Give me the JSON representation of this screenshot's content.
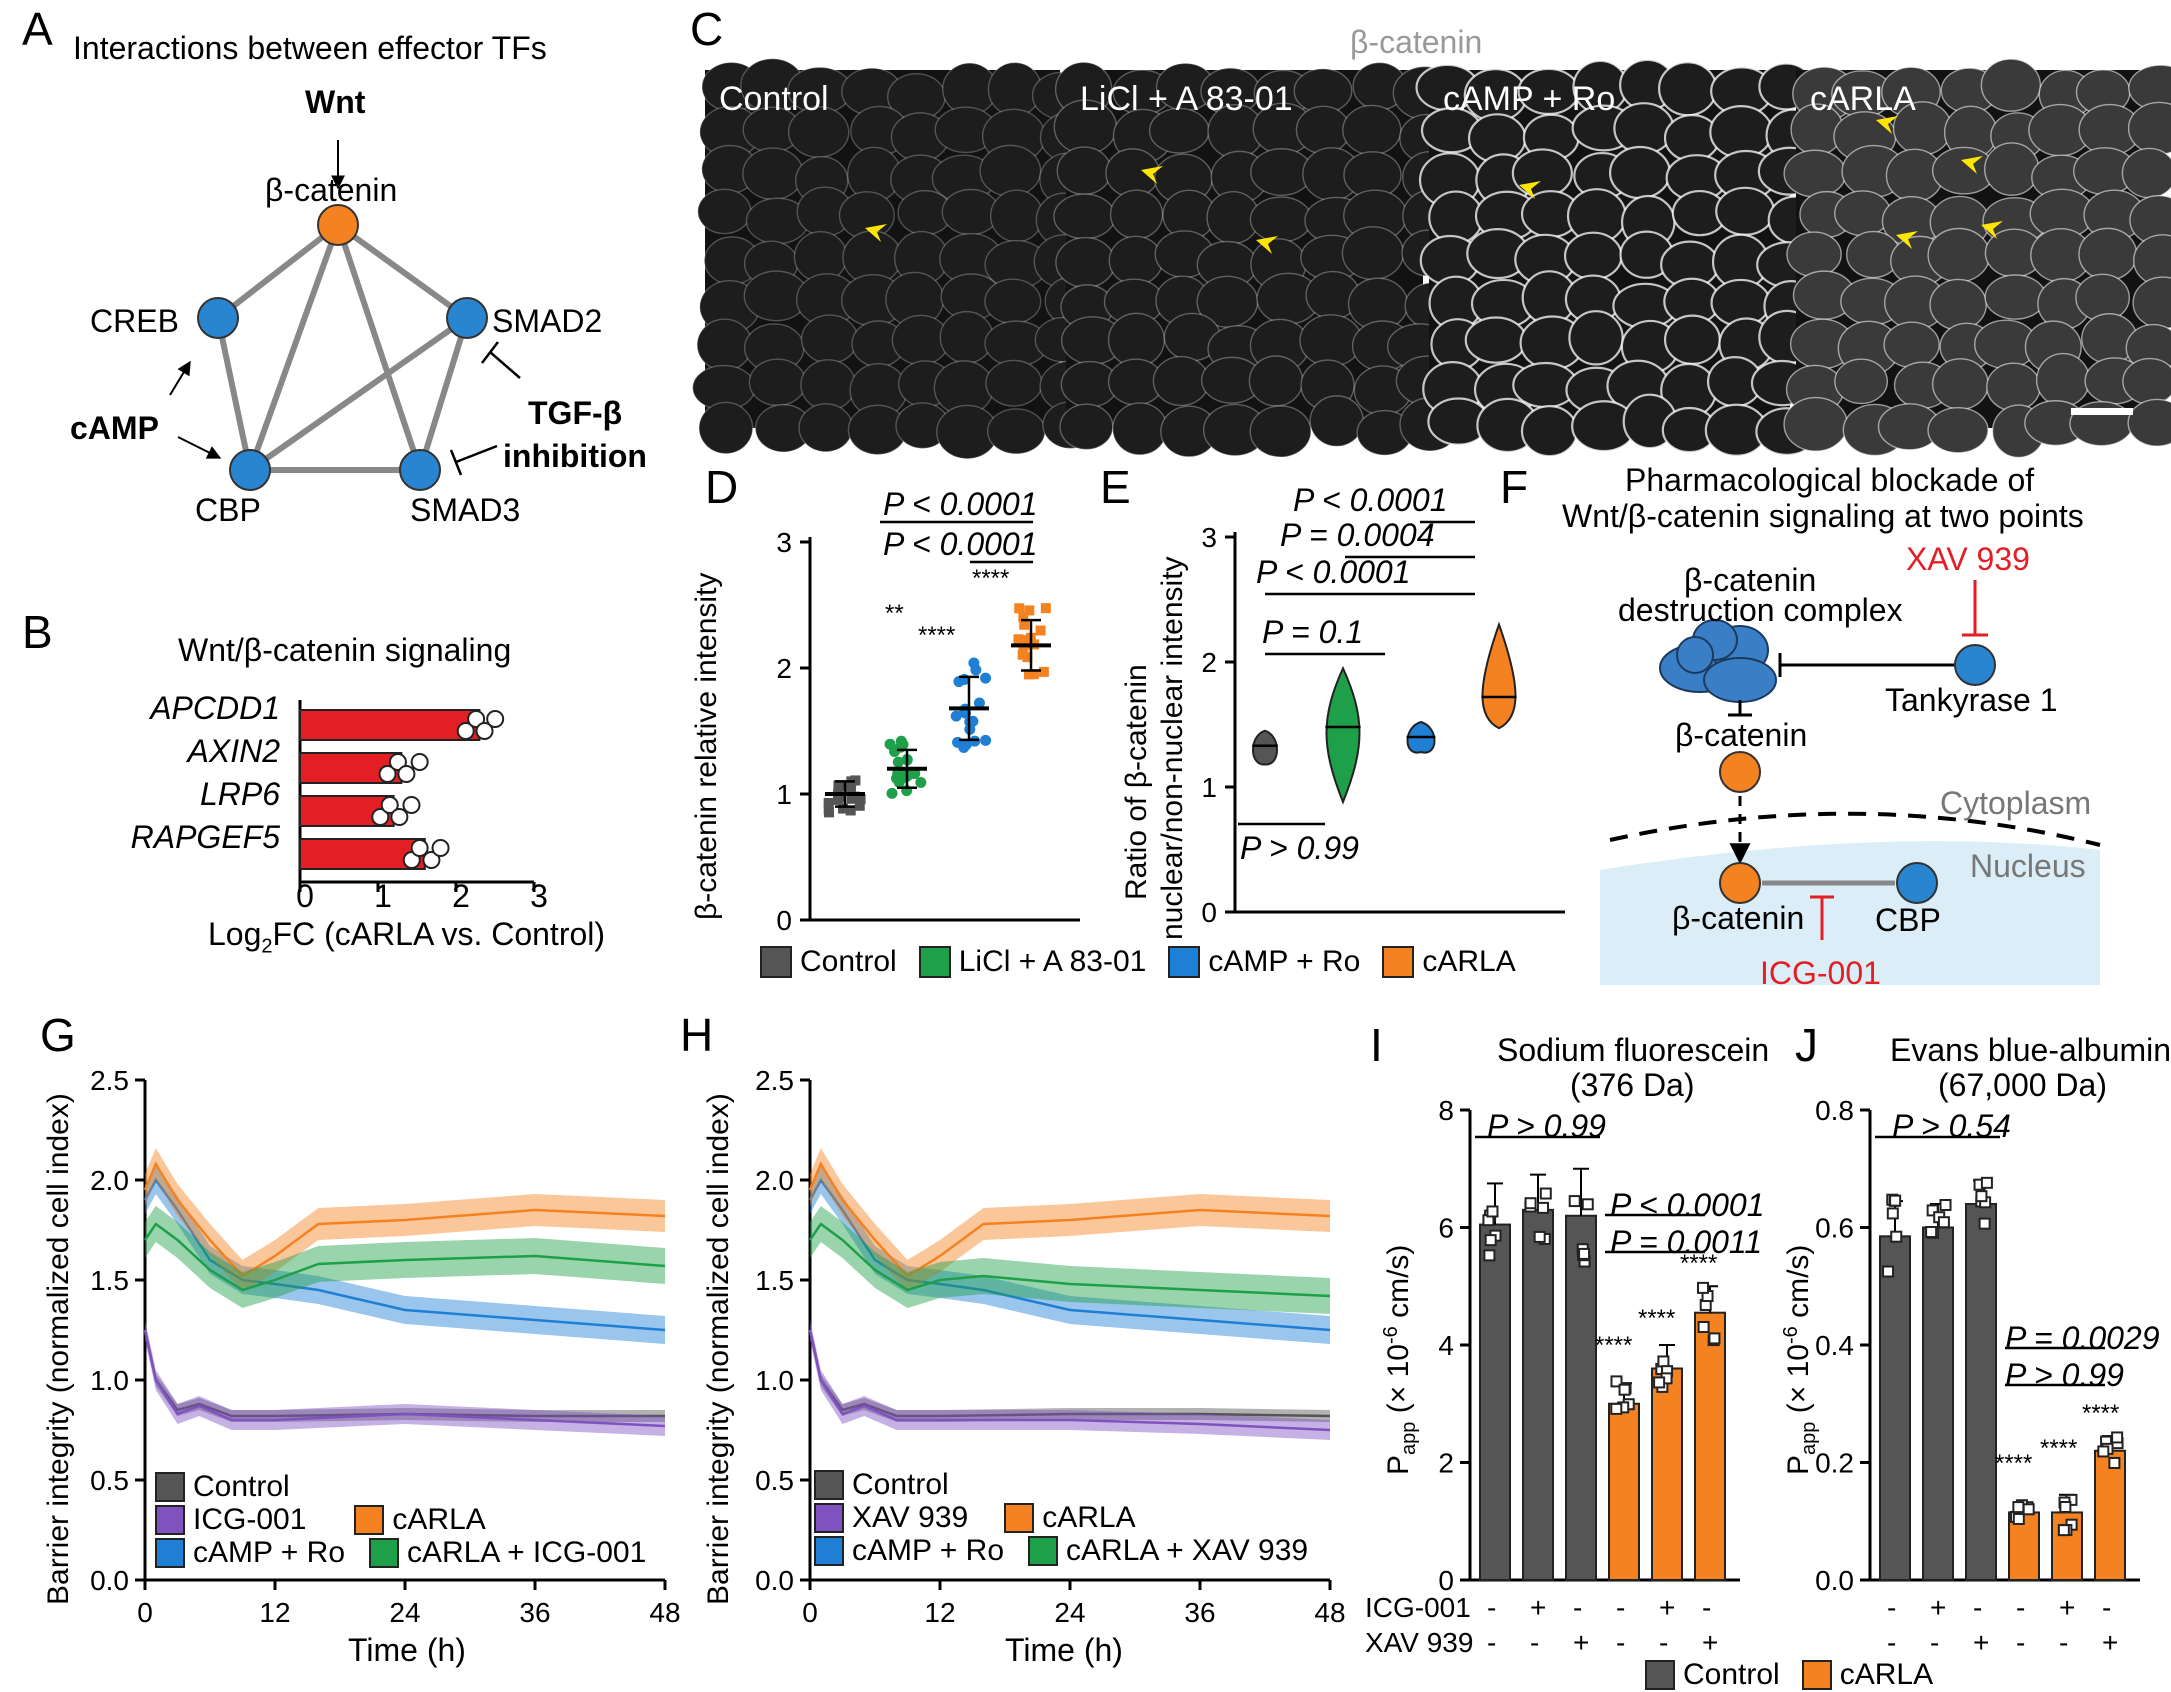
{
  "panels": {
    "A": "A",
    "B": "B",
    "C": "C",
    "D": "D",
    "E": "E",
    "F": "F",
    "G": "G",
    "H": "H",
    "I": "I",
    "J": "J"
  },
  "A": {
    "title": "Interactions between effector TFs",
    "wnt": "Wnt",
    "bcat": "β-catenin",
    "creb": "CREB",
    "smad2": "SMAD2",
    "camp": "cAMP",
    "tgf1": "TGF-β",
    "tgf2": "inhibition",
    "cbp": "CBP",
    "smad3": "SMAD3"
  },
  "B": {
    "title": "Wnt/β-catenin signaling",
    "genes": [
      "APCDD1",
      "AXIN2",
      "LRP6",
      "RAPGEF5"
    ],
    "xticks": [
      "0",
      "1",
      "2",
      "3"
    ],
    "xlabel_pre": "Log",
    "xlabel_sub": "2",
    "xlabel_post": "FC (cARLA vs. Control)"
  },
  "C": {
    "title": "β-catenin",
    "images": [
      "Control",
      "LiCl + A 83-01",
      "cAMP + Ro",
      "cARLA"
    ]
  },
  "D": {
    "ylabel": "β-catenin relative intensity",
    "yticks": [
      "0",
      "1",
      "2",
      "3"
    ],
    "p1": "P < 0.0001",
    "p2": "P < 0.0001",
    "stars": [
      "**",
      "****",
      "****"
    ]
  },
  "E": {
    "ylabel1": "Ratio of β-catenin",
    "ylabel2": "nuclear/non-nuclear intensity",
    "yticks": [
      "0",
      "1",
      "2",
      "3"
    ],
    "p1": "P < 0.0001",
    "p2": "P = 0.0004",
    "p3": "P < 0.0001",
    "p4": "P = 0.1",
    "p5": "P > 0.99"
  },
  "DE_legend": [
    "Control",
    "LiCl + A 83-01",
    "cAMP + Ro",
    "cARLA"
  ],
  "F": {
    "title1": "Pharmacological blockade of",
    "title2": "Wnt/β-catenin signaling at two points",
    "xav": "XAV 939",
    "complex1": "β-catenin",
    "complex2": "destruction complex",
    "tank": "Tankyrase 1",
    "bcat": "β-catenin",
    "cyto": "Cytoplasm",
    "nucleus": "Nucleus",
    "bcat2": "β-catenin",
    "cbp": "CBP",
    "icg": "ICG-001"
  },
  "G": {
    "ylabel": "Barrier integrity (normalized cell index)",
    "xlabel": "Time (h)",
    "yticks": [
      "0.0",
      "0.5",
      "1.0",
      "1.5",
      "2.0",
      "2.5"
    ],
    "xticks": [
      "0",
      "12",
      "24",
      "36",
      "48"
    ],
    "legend": [
      "Control",
      "ICG-001",
      "cAMP + Ro",
      "cARLA",
      "cARLA + ICG-001"
    ]
  },
  "H": {
    "ylabel": "Barrier integrity (normalized cell index)",
    "xlabel": "Time (h)",
    "yticks": [
      "0.0",
      "0.5",
      "1.0",
      "1.5",
      "2.0",
      "2.5"
    ],
    "xticks": [
      "0",
      "12",
      "24",
      "36",
      "48"
    ],
    "legend": [
      "Control",
      "XAV 939",
      "cAMP + Ro",
      "cARLA",
      "cARLA + XAV 939"
    ]
  },
  "I": {
    "title1": "Sodium fluorescein",
    "title2": "(376 Da)",
    "yticks": [
      "0",
      "2",
      "4",
      "6",
      "8"
    ],
    "p1": "P > 0.99",
    "p2": "P < 0.0001",
    "p3": "P = 0.0011",
    "stars": [
      "****",
      "****",
      "****"
    ]
  },
  "J": {
    "title1": "Evans blue-albumin",
    "title2": "(67,000 Da)",
    "yticks": [
      "0.0",
      "0.2",
      "0.4",
      "0.6",
      "0.8"
    ],
    "p1": "P > 0.54",
    "p2": "P = 0.0029",
    "p3": "P > 0.99",
    "stars": [
      "****",
      "****",
      "****"
    ]
  },
  "IJ_rows": {
    "icg": "ICG-001",
    "xav": "XAV 939",
    "icg_signs": [
      "-",
      "+",
      "-",
      "-",
      "+",
      "-"
    ],
    "xav_signs": [
      "-",
      "-",
      "+",
      "-",
      "-",
      "+"
    ]
  },
  "IJ_legend": [
    "Control",
    "cARLA"
  ],
  "colors": {
    "control": "#555555",
    "licl": "#1e9f4a",
    "camp": "#1f7fd4",
    "carla": "#f58220",
    "icg": "#7f52c0",
    "node_orange": "#f58220",
    "node_blue": "#2a85d0",
    "red": "#e31e24",
    "nucleus_bg": "#dbeef7"
  },
  "chart_data": [
    {
      "panel": "B",
      "type": "bar",
      "orientation": "horizontal",
      "title": "Wnt/β-catenin signaling",
      "categories": [
        "APCDD1",
        "AXIN2",
        "LRP6",
        "RAPGEF5"
      ],
      "values": [
        2.3,
        1.3,
        1.2,
        1.6
      ],
      "xlim": [
        0,
        3
      ]
    },
    {
      "panel": "D",
      "type": "scatter",
      "categories": [
        "Control",
        "LiCl + A 83-01",
        "cAMP + Ro",
        "cARLA"
      ],
      "means": [
        1.0,
        1.2,
        1.68,
        2.18
      ],
      "sd": [
        0.1,
        0.15,
        0.25,
        0.2
      ],
      "ylim": [
        0,
        3
      ]
    },
    {
      "panel": "E",
      "type": "violin",
      "categories": [
        "Control",
        "LiCl + A 83-01",
        "cAMP + Ro",
        "cARLA"
      ],
      "medians": [
        1.33,
        1.48,
        1.4,
        1.72
      ],
      "ylim": [
        0,
        3
      ]
    },
    {
      "panel": "G",
      "type": "line",
      "xlim": [
        0,
        48
      ],
      "ylim": [
        0,
        2.5
      ],
      "series": [
        {
          "name": "Control",
          "x": [
            0,
            1,
            3,
            5,
            8,
            12,
            24,
            36,
            48
          ],
          "y": [
            1.25,
            1.0,
            0.85,
            0.88,
            0.82,
            0.82,
            0.83,
            0.82,
            0.82
          ]
        },
        {
          "name": "ICG-001",
          "x": [
            0,
            1,
            3,
            5,
            8,
            12,
            24,
            36,
            48
          ],
          "y": [
            1.25,
            1.0,
            0.83,
            0.87,
            0.8,
            0.8,
            0.83,
            0.8,
            0.77
          ]
        },
        {
          "name": "cAMP + Ro",
          "x": [
            0,
            1,
            3,
            6,
            9,
            12,
            16,
            24,
            36,
            48
          ],
          "y": [
            1.9,
            2.0,
            1.85,
            1.6,
            1.5,
            1.48,
            1.45,
            1.35,
            1.3,
            1.25
          ]
        },
        {
          "name": "cARLA",
          "x": [
            0,
            1,
            3,
            6,
            9,
            12,
            16,
            24,
            36,
            48
          ],
          "y": [
            1.95,
            2.08,
            1.9,
            1.7,
            1.52,
            1.62,
            1.78,
            1.8,
            1.85,
            1.82
          ]
        },
        {
          "name": "cARLA + ICG-001",
          "x": [
            0,
            1,
            3,
            6,
            9,
            12,
            16,
            24,
            36,
            48
          ],
          "y": [
            1.7,
            1.78,
            1.7,
            1.55,
            1.45,
            1.5,
            1.58,
            1.6,
            1.62,
            1.57
          ]
        }
      ]
    },
    {
      "panel": "H",
      "type": "line",
      "xlim": [
        0,
        48
      ],
      "ylim": [
        0,
        2.5
      ],
      "series": [
        {
          "name": "Control",
          "x": [
            0,
            1,
            3,
            5,
            8,
            12,
            24,
            36,
            48
          ],
          "y": [
            1.25,
            1.0,
            0.85,
            0.88,
            0.82,
            0.82,
            0.83,
            0.83,
            0.82
          ]
        },
        {
          "name": "XAV 939",
          "x": [
            0,
            1,
            3,
            5,
            8,
            12,
            24,
            36,
            48
          ],
          "y": [
            1.25,
            1.0,
            0.83,
            0.87,
            0.8,
            0.8,
            0.8,
            0.78,
            0.75
          ]
        },
        {
          "name": "cAMP + Ro",
          "x": [
            0,
            1,
            3,
            6,
            9,
            12,
            16,
            24,
            36,
            48
          ],
          "y": [
            1.9,
            2.0,
            1.85,
            1.6,
            1.5,
            1.48,
            1.45,
            1.35,
            1.3,
            1.25
          ]
        },
        {
          "name": "cARLA",
          "x": [
            0,
            1,
            3,
            6,
            9,
            12,
            16,
            24,
            36,
            48
          ],
          "y": [
            1.95,
            2.08,
            1.9,
            1.7,
            1.52,
            1.62,
            1.78,
            1.8,
            1.85,
            1.82
          ]
        },
        {
          "name": "cARLA + XAV 939",
          "x": [
            0,
            1,
            3,
            6,
            9,
            12,
            16,
            24,
            36,
            48
          ],
          "y": [
            1.7,
            1.78,
            1.7,
            1.55,
            1.45,
            1.5,
            1.52,
            1.48,
            1.45,
            1.42
          ]
        }
      ]
    },
    {
      "panel": "I",
      "type": "bar",
      "title": "Sodium fluorescein (376 Da)",
      "values": [
        6.05,
        6.3,
        6.2,
        3.0,
        3.6,
        4.55
      ],
      "sd": [
        0.7,
        0.6,
        0.8,
        0.35,
        0.4,
        0.45
      ],
      "ylim": [
        0,
        8
      ]
    },
    {
      "panel": "J",
      "type": "bar",
      "title": "Evans blue-albumin (67,000 Da)",
      "values": [
        0.585,
        0.6,
        0.64,
        0.115,
        0.115,
        0.22
      ],
      "sd": [
        0.06,
        0.04,
        0.04,
        0.015,
        0.03,
        0.025
      ],
      "ylim": [
        0,
        0.8
      ]
    }
  ]
}
